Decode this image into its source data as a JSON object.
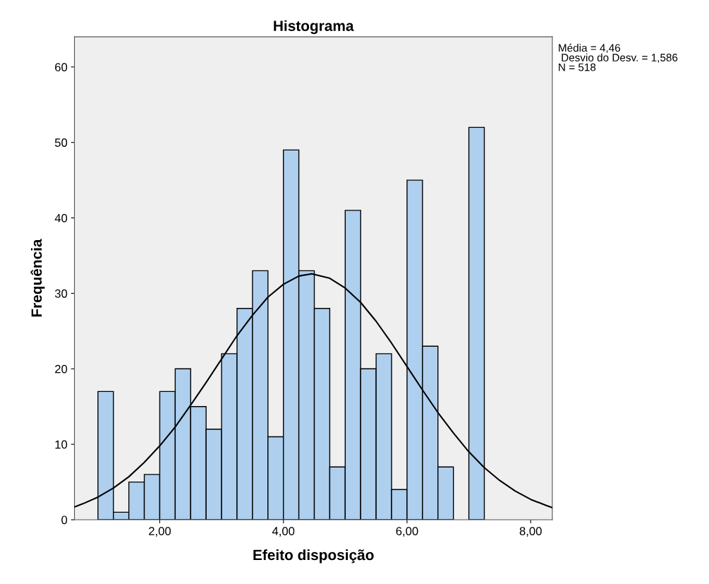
{
  "chart_data": {
    "type": "histogram",
    "title": "Histograma",
    "xlabel": "Efeito disposição",
    "ylabel": "Frequência",
    "bins": [
      1.0,
      1.25,
      1.5,
      1.75,
      2.0,
      2.25,
      2.5,
      2.75,
      3.0,
      3.25,
      3.5,
      3.75,
      4.0,
      4.25,
      4.5,
      4.75,
      5.0,
      5.25,
      5.5,
      5.75,
      6.0,
      6.25,
      6.5,
      6.75,
      7.0,
      7.25
    ],
    "values": [
      17,
      1,
      5,
      6,
      17,
      20,
      15,
      12,
      22,
      28,
      33,
      11,
      49,
      33,
      28,
      7,
      41,
      20,
      22,
      4,
      45,
      23,
      7,
      0,
      52
    ],
    "color": "#aecfee",
    "series": [
      {
        "type": "line",
        "color": "#000000",
        "x": [
          0.62,
          0.75,
          1.0,
          1.25,
          1.5,
          1.75,
          2.0,
          2.25,
          2.5,
          2.75,
          3.0,
          3.25,
          3.5,
          3.75,
          4.0,
          4.25,
          4.46,
          4.75,
          5.0,
          5.25,
          5.5,
          5.75,
          6.0,
          6.25,
          6.5,
          6.75,
          7.0,
          7.25,
          7.5,
          7.75,
          8.0,
          8.25,
          8.35
        ],
        "values": [
          1.7,
          2.1,
          3.0,
          4.2,
          5.7,
          7.6,
          9.8,
          12.3,
          15.2,
          18.2,
          21.3,
          24.4,
          27.1,
          29.5,
          31.2,
          32.3,
          32.6,
          32.0,
          30.7,
          28.8,
          26.3,
          23.4,
          20.3,
          17.2,
          14.2,
          11.5,
          9.0,
          6.9,
          5.2,
          3.8,
          2.7,
          1.9,
          1.6
        ]
      }
    ],
    "xlim": [
      0.62,
      8.35
    ],
    "ylim": [
      0,
      64
    ],
    "xticks": [
      {
        "value": 2,
        "label": "2,00"
      },
      {
        "value": 4,
        "label": "4,00"
      },
      {
        "value": 6,
        "label": "6,00"
      },
      {
        "value": 8,
        "label": "8,00"
      }
    ],
    "yticks": [
      0,
      10,
      20,
      30,
      40,
      50,
      60
    ],
    "grid": false,
    "legend": false,
    "annotations": [
      "Média = 4,46\n Desvio do Desv. = 1,586\nN = 518"
    ]
  }
}
